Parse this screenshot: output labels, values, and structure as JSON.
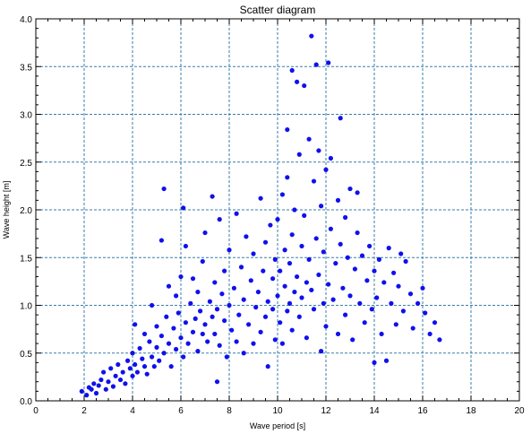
{
  "chart_data": {
    "type": "scatter",
    "title": "Scatter diagram",
    "xlabel": "Wave period [s]",
    "ylabel": "Wave height [m]",
    "xlim": [
      0,
      20
    ],
    "ylim": [
      0,
      4
    ],
    "xticks": [
      "0",
      "2",
      "4",
      "6",
      "8",
      "10",
      "12",
      "14",
      "16",
      "18",
      "20"
    ],
    "yticks": [
      "0.0",
      "0.5",
      "1.0",
      "1.5",
      "2.0",
      "2.5",
      "3.0",
      "3.5",
      "4.0"
    ],
    "grid": true,
    "marker_color": "#1010ee",
    "grid_color": "#3a7ea8",
    "series": [
      {
        "points": [
          [
            1.9,
            0.1
          ],
          [
            2.1,
            0.06
          ],
          [
            2.2,
            0.14
          ],
          [
            2.3,
            0.12
          ],
          [
            2.4,
            0.18
          ],
          [
            2.5,
            0.08
          ],
          [
            2.6,
            0.16
          ],
          [
            2.7,
            0.22
          ],
          [
            2.8,
            0.3
          ],
          [
            2.9,
            0.12
          ],
          [
            3.0,
            0.2
          ],
          [
            3.1,
            0.34
          ],
          [
            3.2,
            0.15
          ],
          [
            3.3,
            0.26
          ],
          [
            3.4,
            0.38
          ],
          [
            3.5,
            0.22
          ],
          [
            3.6,
            0.3
          ],
          [
            3.7,
            0.18
          ],
          [
            3.8,
            0.42
          ],
          [
            3.9,
            0.34
          ],
          [
            4.0,
            0.26
          ],
          [
            4.0,
            0.5
          ],
          [
            4.1,
            0.38
          ],
          [
            4.1,
            0.8
          ],
          [
            4.2,
            0.3
          ],
          [
            4.3,
            0.55
          ],
          [
            4.4,
            0.44
          ],
          [
            4.5,
            0.36
          ],
          [
            4.5,
            0.7
          ],
          [
            4.6,
            0.28
          ],
          [
            4.7,
            0.62
          ],
          [
            4.8,
            0.46
          ],
          [
            4.8,
            1.0
          ],
          [
            4.9,
            0.36
          ],
          [
            5.0,
            0.56
          ],
          [
            5.0,
            0.78
          ],
          [
            5.1,
            0.42
          ],
          [
            5.2,
            0.68
          ],
          [
            5.2,
            1.68
          ],
          [
            5.3,
            0.5
          ],
          [
            5.3,
            2.22
          ],
          [
            5.4,
            0.88
          ],
          [
            5.5,
            0.6
          ],
          [
            5.5,
            1.2
          ],
          [
            5.6,
            0.36
          ],
          [
            5.7,
            0.76
          ],
          [
            5.8,
            0.54
          ],
          [
            5.8,
            1.1
          ],
          [
            5.9,
            0.92
          ],
          [
            6.0,
            0.66
          ],
          [
            6.0,
            1.3
          ],
          [
            6.1,
            0.46
          ],
          [
            6.1,
            2.02
          ],
          [
            6.2,
            0.82
          ],
          [
            6.2,
            1.62
          ],
          [
            6.3,
            0.6
          ],
          [
            6.4,
            1.02
          ],
          [
            6.5,
            0.72
          ],
          [
            6.5,
            1.28
          ],
          [
            6.6,
            0.86
          ],
          [
            6.7,
            0.52
          ],
          [
            6.7,
            1.14
          ],
          [
            6.8,
            0.94
          ],
          [
            6.9,
            0.7
          ],
          [
            6.9,
            1.46
          ],
          [
            7.0,
            0.8
          ],
          [
            7.0,
            1.76
          ],
          [
            7.1,
            0.62
          ],
          [
            7.2,
            1.04
          ],
          [
            7.3,
            0.88
          ],
          [
            7.3,
            2.14
          ],
          [
            7.4,
            0.7
          ],
          [
            7.4,
            1.24
          ],
          [
            7.5,
            0.2
          ],
          [
            7.5,
            0.96
          ],
          [
            7.6,
            1.9
          ],
          [
            7.6,
            0.58
          ],
          [
            7.7,
            1.12
          ],
          [
            7.8,
            0.84
          ],
          [
            7.8,
            1.36
          ],
          [
            7.9,
            0.46
          ],
          [
            8.0,
            1.0
          ],
          [
            8.0,
            1.58
          ],
          [
            8.1,
            0.74
          ],
          [
            8.2,
            1.18
          ],
          [
            8.3,
            0.62
          ],
          [
            8.3,
            1.96
          ],
          [
            8.4,
            0.9
          ],
          [
            8.5,
            1.4
          ],
          [
            8.6,
            0.5
          ],
          [
            8.6,
            1.06
          ],
          [
            8.7,
            1.72
          ],
          [
            8.8,
            0.8
          ],
          [
            8.9,
            1.26
          ],
          [
            9.0,
            0.6
          ],
          [
            9.0,
            1.54
          ],
          [
            9.1,
            0.98
          ],
          [
            9.2,
            1.14
          ],
          [
            9.3,
            2.12
          ],
          [
            9.3,
            0.72
          ],
          [
            9.4,
            1.36
          ],
          [
            9.5,
            0.88
          ],
          [
            9.5,
            1.66
          ],
          [
            9.6,
            1.04
          ],
          [
            9.6,
            0.36
          ],
          [
            9.7,
            1.84
          ],
          [
            9.8,
            0.96
          ],
          [
            9.8,
            1.28
          ],
          [
            9.9,
            0.64
          ],
          [
            9.9,
            1.48
          ],
          [
            10.0,
            1.1
          ],
          [
            10.0,
            1.9
          ],
          [
            10.1,
            0.82
          ],
          [
            10.1,
            1.36
          ],
          [
            10.2,
            2.16
          ],
          [
            10.2,
            0.6
          ],
          [
            10.3,
            1.2
          ],
          [
            10.3,
            1.58
          ],
          [
            10.4,
            0.94
          ],
          [
            10.4,
            2.34
          ],
          [
            10.4,
            2.84
          ],
          [
            10.5,
            1.02
          ],
          [
            10.5,
            1.44
          ],
          [
            10.6,
            3.46
          ],
          [
            10.6,
            1.74
          ],
          [
            10.6,
            0.74
          ],
          [
            10.7,
            1.14
          ],
          [
            10.7,
            2.0
          ],
          [
            10.8,
            3.34
          ],
          [
            10.8,
            1.3
          ],
          [
            10.9,
            0.88
          ],
          [
            10.9,
            2.58
          ],
          [
            11.0,
            1.62
          ],
          [
            11.0,
            1.08
          ],
          [
            11.1,
            3.3
          ],
          [
            11.1,
            1.94
          ],
          [
            11.2,
            1.24
          ],
          [
            11.2,
            0.66
          ],
          [
            11.3,
            2.74
          ],
          [
            11.3,
            1.48
          ],
          [
            11.4,
            3.82
          ],
          [
            11.4,
            1.16
          ],
          [
            11.5,
            2.3
          ],
          [
            11.5,
            0.96
          ],
          [
            11.6,
            3.52
          ],
          [
            11.6,
            1.7
          ],
          [
            11.7,
            2.62
          ],
          [
            11.7,
            1.32
          ],
          [
            11.8,
            0.52
          ],
          [
            11.8,
            2.04
          ],
          [
            11.9,
            1.56
          ],
          [
            11.9,
            1.02
          ],
          [
            12.0,
            2.42
          ],
          [
            12.0,
            0.78
          ],
          [
            12.1,
            3.54
          ],
          [
            12.1,
            1.22
          ],
          [
            12.2,
            1.8
          ],
          [
            12.2,
            2.54
          ],
          [
            12.3,
            1.06
          ],
          [
            12.4,
            1.44
          ],
          [
            12.5,
            2.1
          ],
          [
            12.5,
            0.7
          ],
          [
            12.6,
            2.96
          ],
          [
            12.6,
            1.64
          ],
          [
            12.7,
            1.18
          ],
          [
            12.8,
            1.92
          ],
          [
            12.8,
            0.9
          ],
          [
            12.9,
            1.5
          ],
          [
            13.0,
            2.22
          ],
          [
            13.0,
            1.1
          ],
          [
            13.1,
            0.64
          ],
          [
            13.2,
            1.38
          ],
          [
            13.3,
            1.76
          ],
          [
            13.3,
            2.18
          ],
          [
            13.4,
            1.02
          ],
          [
            13.5,
            1.52
          ],
          [
            13.6,
            0.82
          ],
          [
            13.7,
            1.26
          ],
          [
            13.8,
            1.62
          ],
          [
            13.9,
            0.96
          ],
          [
            14.0,
            0.4
          ],
          [
            14.0,
            1.36
          ],
          [
            14.1,
            1.08
          ],
          [
            14.2,
            1.48
          ],
          [
            14.3,
            0.7
          ],
          [
            14.4,
            1.24
          ],
          [
            14.5,
            0.42
          ],
          [
            14.6,
            1.6
          ],
          [
            14.7,
            1.02
          ],
          [
            14.8,
            1.34
          ],
          [
            14.9,
            0.8
          ],
          [
            15.0,
            1.2
          ],
          [
            15.1,
            1.54
          ],
          [
            15.2,
            0.94
          ],
          [
            15.3,
            1.46
          ],
          [
            15.5,
            1.12
          ],
          [
            15.6,
            0.76
          ],
          [
            15.8,
            1.02
          ],
          [
            16.0,
            1.18
          ],
          [
            16.1,
            0.92
          ],
          [
            16.3,
            0.7
          ],
          [
            16.5,
            0.82
          ],
          [
            16.7,
            0.64
          ]
        ]
      }
    ]
  }
}
